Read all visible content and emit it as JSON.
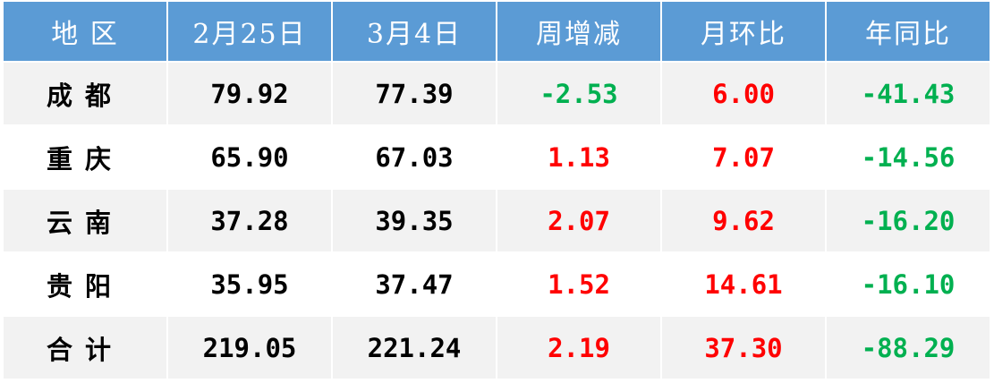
{
  "headers": [
    "地 区",
    "2月25日",
    "3月4日",
    "周增减",
    "月环比",
    "年同比"
  ],
  "rows": [
    {
      "region": "成都",
      "feb25": "79.92",
      "mar4": "77.39",
      "weekly": "-2.53",
      "mom": "6.00",
      "yoy": "-41.43"
    },
    {
      "region": "重庆",
      "feb25": "65.90",
      "mar4": "67.03",
      "weekly": "1.13",
      "mom": "7.07",
      "yoy": "-14.56"
    },
    {
      "region": "云南",
      "feb25": "37.28",
      "mar4": "39.35",
      "weekly": "2.07",
      "mom": "9.62",
      "yoy": "-16.20"
    },
    {
      "region": "贵阳",
      "feb25": "35.95",
      "mar4": "37.47",
      "weekly": "1.52",
      "mom": "14.61",
      "yoy": "-16.10"
    },
    {
      "region": "合计",
      "feb25": "219.05",
      "mar4": "221.24",
      "weekly": "2.19",
      "mom": "37.30",
      "yoy": "-88.29"
    }
  ],
  "colors": {
    "header_bg": "#5b9bd5",
    "positive": "#ff0000",
    "negative": "#00b050",
    "stripe": "#f2f2f2"
  }
}
